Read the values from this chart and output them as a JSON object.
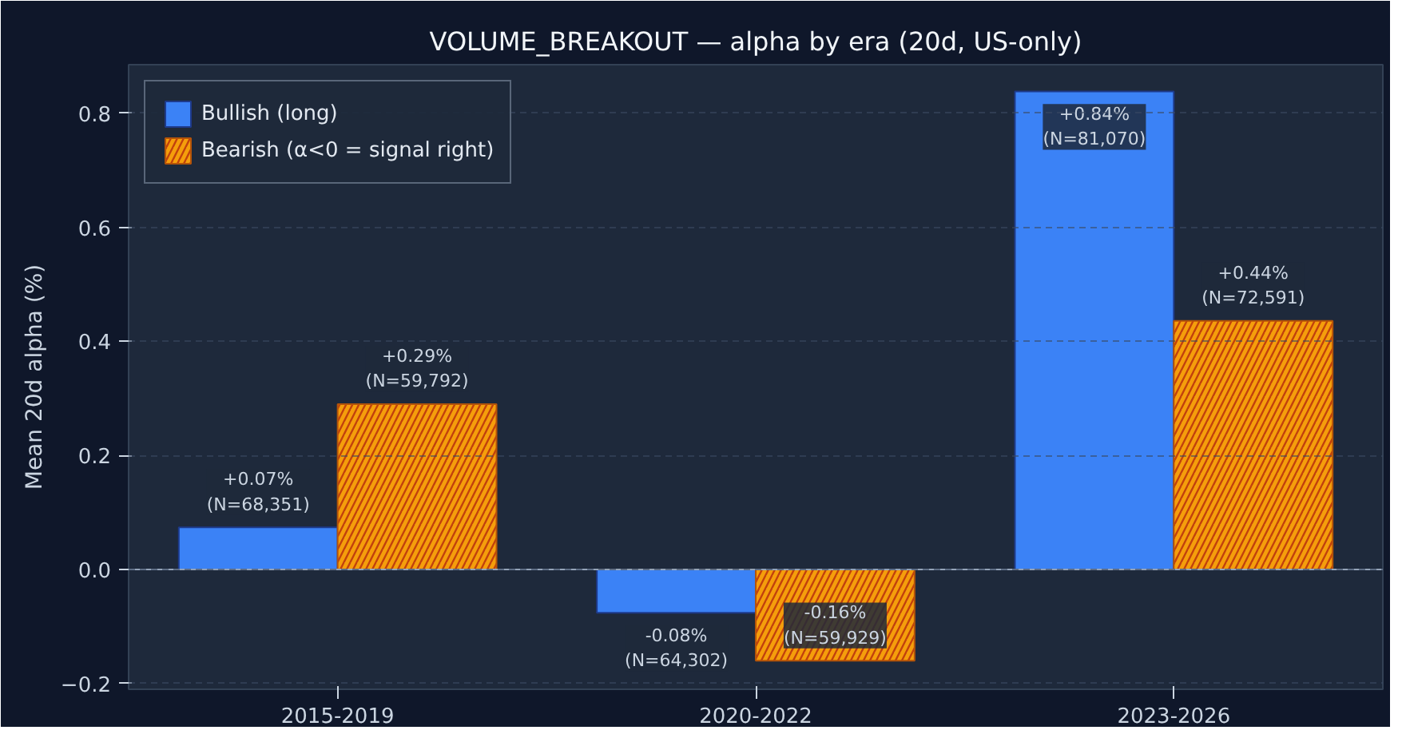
{
  "chart_data": {
    "type": "bar",
    "title": "VOLUME_BREAKOUT — alpha by era (20d, US-only)",
    "ylabel": "Mean 20d alpha (%)",
    "categories": [
      "2015-2019",
      "2020-2022",
      "2023-2026"
    ],
    "series": [
      {
        "name": "Bullish (long)",
        "color": "#3b82f6",
        "values": [
          0.074,
          -0.076,
          0.838
        ],
        "value_labels": [
          "+0.07%\n(N=68,351)",
          "-0.08%\n(N=64,302)",
          "+0.84%\n(N=81,070)"
        ]
      },
      {
        "name": "Bearish (α<0 = signal right)",
        "color": "#f59e0b",
        "values": [
          0.29,
          -0.16,
          0.436
        ],
        "value_labels": [
          "+0.29%\n(N=59,792)",
          "-0.16%\n(N=59,929)",
          "+0.44%\n(N=72,591)"
        ]
      }
    ],
    "ylim": [
      -0.21,
      0.885
    ],
    "yticks": [
      {
        "value": -0.2,
        "label": "−0.2"
      },
      {
        "value": 0.0,
        "label": "0.0"
      },
      {
        "value": 0.2,
        "label": "0.2"
      },
      {
        "value": 0.4,
        "label": "0.4"
      },
      {
        "value": 0.6,
        "label": "0.6"
      },
      {
        "value": 0.8,
        "label": "0.8"
      }
    ],
    "ref_lines": [
      {
        "axis": "y",
        "value": 0,
        "color": "#94a3b8"
      }
    ],
    "grid": "y",
    "legend": "top left"
  }
}
